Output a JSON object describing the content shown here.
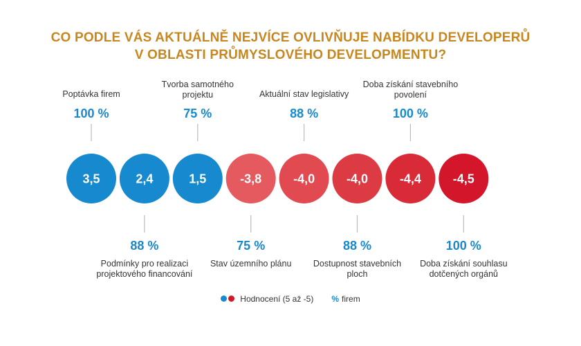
{
  "title": {
    "line1": "CO PODLE VÁS AKTUÁLNĚ NEJVÍCE OVLIVŇUJE NABÍDKU DEVELOPERŮ",
    "line2": "V OBLASTI PRŮMYSLOVÉHO DEVELOPMENTU?"
  },
  "colors": {
    "title": "#c8861e",
    "positive": "#1789cf",
    "negative_scale": [
      "#e45a5e",
      "#e04a50",
      "#dc3b43",
      "#d82a37",
      "#d4162a"
    ],
    "percent": "#1789cf",
    "connector": "#bbbbbb"
  },
  "chart_data": {
    "type": "bubble-row",
    "title": "CO PODLE VÁS AKTUÁLNĚ NEJVÍCE OVLIVŇUJE NABÍDKU DEVELOPERŮ V OBLASTI PRŮMYSLOVÉHO DEVELOPMENTU?",
    "items": [
      {
        "label_lines": [
          "Poptávka firem"
        ],
        "value": 3.5,
        "value_text": "3,5",
        "percent": 100,
        "percent_text": "100 %",
        "label_position": "top"
      },
      {
        "label_lines": [
          "Podmínky pro realizaci",
          "projektového financování"
        ],
        "value": 2.4,
        "value_text": "2,4",
        "percent": 88,
        "percent_text": "88 %",
        "label_position": "bottom"
      },
      {
        "label_lines": [
          "Tvorba samotného",
          "projektu"
        ],
        "value": 1.5,
        "value_text": "1,5",
        "percent": 75,
        "percent_text": "75 %",
        "label_position": "top"
      },
      {
        "label_lines": [
          "Stav územního plánu"
        ],
        "value": -3.8,
        "value_text": "-3,8",
        "percent": 75,
        "percent_text": "75 %",
        "label_position": "bottom"
      },
      {
        "label_lines": [
          "Aktuální stav legislativy"
        ],
        "value": -4.0,
        "value_text": "-4,0",
        "percent": 88,
        "percent_text": "88 %",
        "label_position": "top"
      },
      {
        "label_lines": [
          "Dostupnost stavebních",
          "ploch"
        ],
        "value": -4.0,
        "value_text": "-4,0",
        "percent": 88,
        "percent_text": "88 %",
        "label_position": "bottom"
      },
      {
        "label_lines": [
          "Doba získání stavebního",
          "povolení"
        ],
        "value": -4.4,
        "value_text": "-4,4",
        "percent": 100,
        "percent_text": "100 %",
        "label_position": "top"
      },
      {
        "label_lines": [
          "Doba získání souhlasu",
          "dotčených orgánů"
        ],
        "value": -4.5,
        "value_text": "-4,5",
        "percent": 100,
        "percent_text": "100 %",
        "label_position": "bottom"
      }
    ],
    "scale_text": "(5 až -5)"
  },
  "legend": {
    "rating_label": "Hodnocení (5 až -5)",
    "percent_symbol": "%",
    "percent_label": "firem"
  }
}
